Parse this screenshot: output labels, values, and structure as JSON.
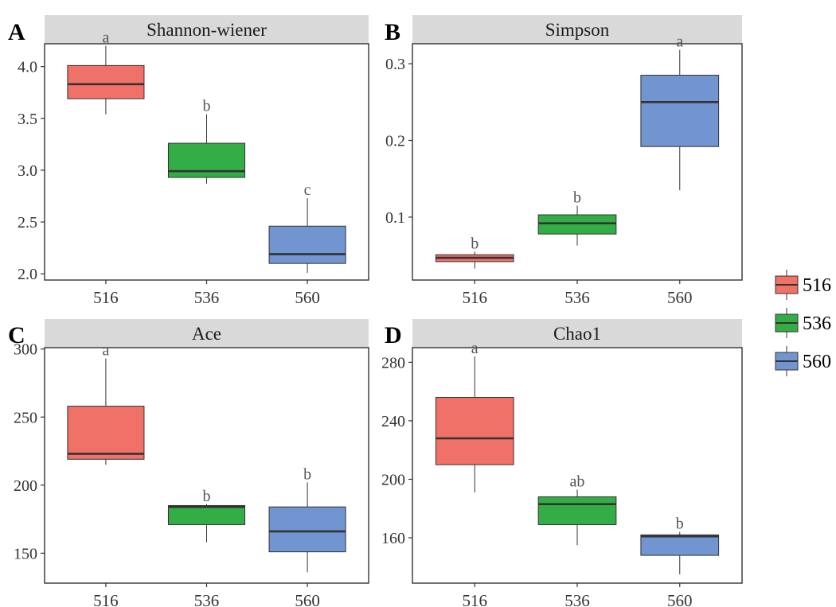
{
  "chart_data": [
    {
      "panel_letter": "A",
      "type": "boxplot",
      "title": "Shannon-wiener",
      "categories": [
        "516",
        "536",
        "560"
      ],
      "ylim": [
        1.94,
        4.22
      ],
      "yticks": [
        2.0,
        2.5,
        3.0,
        3.5,
        4.0
      ],
      "ytick_labels": [
        "2.0",
        "2.5",
        "3.0",
        "3.5",
        "4.0"
      ],
      "boxes": [
        {
          "category": "516",
          "whisker_low": 3.54,
          "q1": 3.69,
          "median": 3.83,
          "q3": 4.01,
          "whisker_high": 4.2,
          "letter": "a"
        },
        {
          "category": "536",
          "whisker_low": 2.87,
          "q1": 2.93,
          "median": 2.99,
          "q3": 3.26,
          "whisker_high": 3.54,
          "letter": "b"
        },
        {
          "category": "560",
          "whisker_low": 2.01,
          "q1": 2.1,
          "median": 2.19,
          "q3": 2.46,
          "whisker_high": 2.73,
          "letter": "c"
        }
      ]
    },
    {
      "panel_letter": "B",
      "type": "boxplot",
      "title": "Simpson",
      "categories": [
        "516",
        "536",
        "560"
      ],
      "ylim": [
        0.018,
        0.326
      ],
      "yticks": [
        0.1,
        0.2,
        0.3
      ],
      "ytick_labels": [
        "0.1",
        "0.2",
        "0.3"
      ],
      "boxes": [
        {
          "category": "516",
          "whisker_low": 0.033,
          "q1": 0.042,
          "median": 0.047,
          "q3": 0.051,
          "whisker_high": 0.055,
          "letter": "b"
        },
        {
          "category": "536",
          "whisker_low": 0.063,
          "q1": 0.078,
          "median": 0.092,
          "q3": 0.103,
          "whisker_high": 0.115,
          "letter": "b"
        },
        {
          "category": "560",
          "whisker_low": 0.135,
          "q1": 0.192,
          "median": 0.25,
          "q3": 0.285,
          "whisker_high": 0.318,
          "letter": "a"
        }
      ]
    },
    {
      "panel_letter": "C",
      "type": "boxplot",
      "title": "Ace",
      "categories": [
        "516",
        "536",
        "560"
      ],
      "ylim": [
        128,
        301
      ],
      "yticks": [
        150,
        200,
        250,
        300
      ],
      "ytick_labels": [
        "150",
        "200",
        "250",
        "300"
      ],
      "boxes": [
        {
          "category": "516",
          "whisker_low": 215,
          "q1": 219,
          "median": 223,
          "q3": 258,
          "whisker_high": 293,
          "letter": "a"
        },
        {
          "category": "536",
          "whisker_low": 158,
          "q1": 171,
          "median": 184,
          "q3": 185,
          "whisker_high": 186,
          "letter": "b"
        },
        {
          "category": "560",
          "whisker_low": 136,
          "q1": 151,
          "median": 166,
          "q3": 184,
          "whisker_high": 202,
          "letter": "b"
        }
      ]
    },
    {
      "panel_letter": "D",
      "type": "boxplot",
      "title": "Chao1",
      "categories": [
        "516",
        "536",
        "560"
      ],
      "ylim": [
        129,
        290
      ],
      "yticks": [
        160,
        200,
        240,
        280
      ],
      "ytick_labels": [
        "160",
        "200",
        "240",
        "280"
      ],
      "boxes": [
        {
          "category": "516",
          "whisker_low": 191,
          "q1": 210,
          "median": 228,
          "q3": 256,
          "whisker_high": 284,
          "letter": "a"
        },
        {
          "category": "536",
          "whisker_low": 155,
          "q1": 169,
          "median": 183,
          "q3": 188,
          "whisker_high": 193,
          "letter": "ab"
        },
        {
          "category": "560",
          "whisker_low": 135,
          "q1": 148,
          "median": 161,
          "q3": 162,
          "whisker_high": 164,
          "letter": "b"
        }
      ]
    }
  ],
  "legend": {
    "placement": "right",
    "items": [
      {
        "label": "516",
        "color": "#F07167"
      },
      {
        "label": "536",
        "color": "#33AE46"
      },
      {
        "label": "560",
        "color": "#7195D0"
      }
    ]
  },
  "colors": {
    "516": "#F07167",
    "536": "#33AE46",
    "560": "#7195D0",
    "strip": "#D9D9D9",
    "axis": "#333333",
    "letter_text": "#555555"
  }
}
